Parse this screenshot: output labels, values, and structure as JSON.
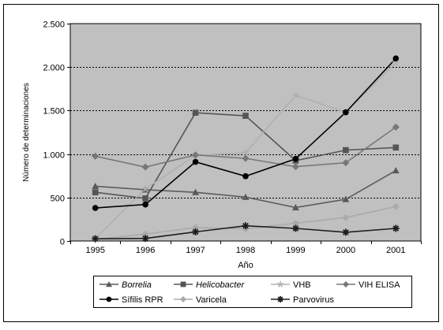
{
  "chart_data": {
    "type": "line",
    "xlabel": "Año",
    "ylabel": "Número de determinaciones",
    "ylim": [
      0,
      2500
    ],
    "y_ticks": [
      {
        "value": 0,
        "label": "0"
      },
      {
        "value": 500,
        "label": "500"
      },
      {
        "value": 1000,
        "label": "1.000"
      },
      {
        "value": 1500,
        "label": "1.500"
      },
      {
        "value": 2000,
        "label": "2.000"
      },
      {
        "value": 2500,
        "label": "2.500"
      }
    ],
    "categories": [
      "1995",
      "1996",
      "1997",
      "1998",
      "1999",
      "2000",
      "2001"
    ],
    "grid": "horizontal dotted",
    "plot_background": "#c0c0c0",
    "legend_position": "bottom",
    "series": [
      {
        "name": "Borrelia",
        "italic": true,
        "marker": "triangle",
        "color": "#5a5a5a",
        "values": [
          630,
          590,
          560,
          505,
          385,
          480,
          810
        ]
      },
      {
        "name": "Helicobacter",
        "italic": true,
        "marker": "square",
        "color": "#555555",
        "values": [
          560,
          490,
          1475,
          1440,
          925,
          1045,
          1075
        ]
      },
      {
        "name": "VHB",
        "italic": false,
        "marker": "star",
        "color": "#b0b0b0",
        "values": [
          30,
          600,
          985,
          1015,
          1675,
          1480,
          2050
        ]
      },
      {
        "name": "VIH ELISA",
        "italic": false,
        "marker": "diamond",
        "color": "#777777",
        "values": [
          975,
          850,
          990,
          950,
          855,
          900,
          1310
        ]
      },
      {
        "name": "Sífilis RPR",
        "italic": false,
        "marker": "circle",
        "color": "#000000",
        "values": [
          380,
          420,
          910,
          745,
          945,
          1480,
          2100
        ]
      },
      {
        "name": "Varicela",
        "italic": false,
        "marker": "diamond",
        "color": "#aaaaaa",
        "values": [
          20,
          80,
          155,
          140,
          205,
          270,
          395
        ]
      },
      {
        "name": "Parvovirus",
        "italic": false,
        "marker": "asterisk",
        "color": "#1e1e1e",
        "values": [
          25,
          30,
          105,
          175,
          145,
          100,
          145
        ]
      }
    ]
  }
}
